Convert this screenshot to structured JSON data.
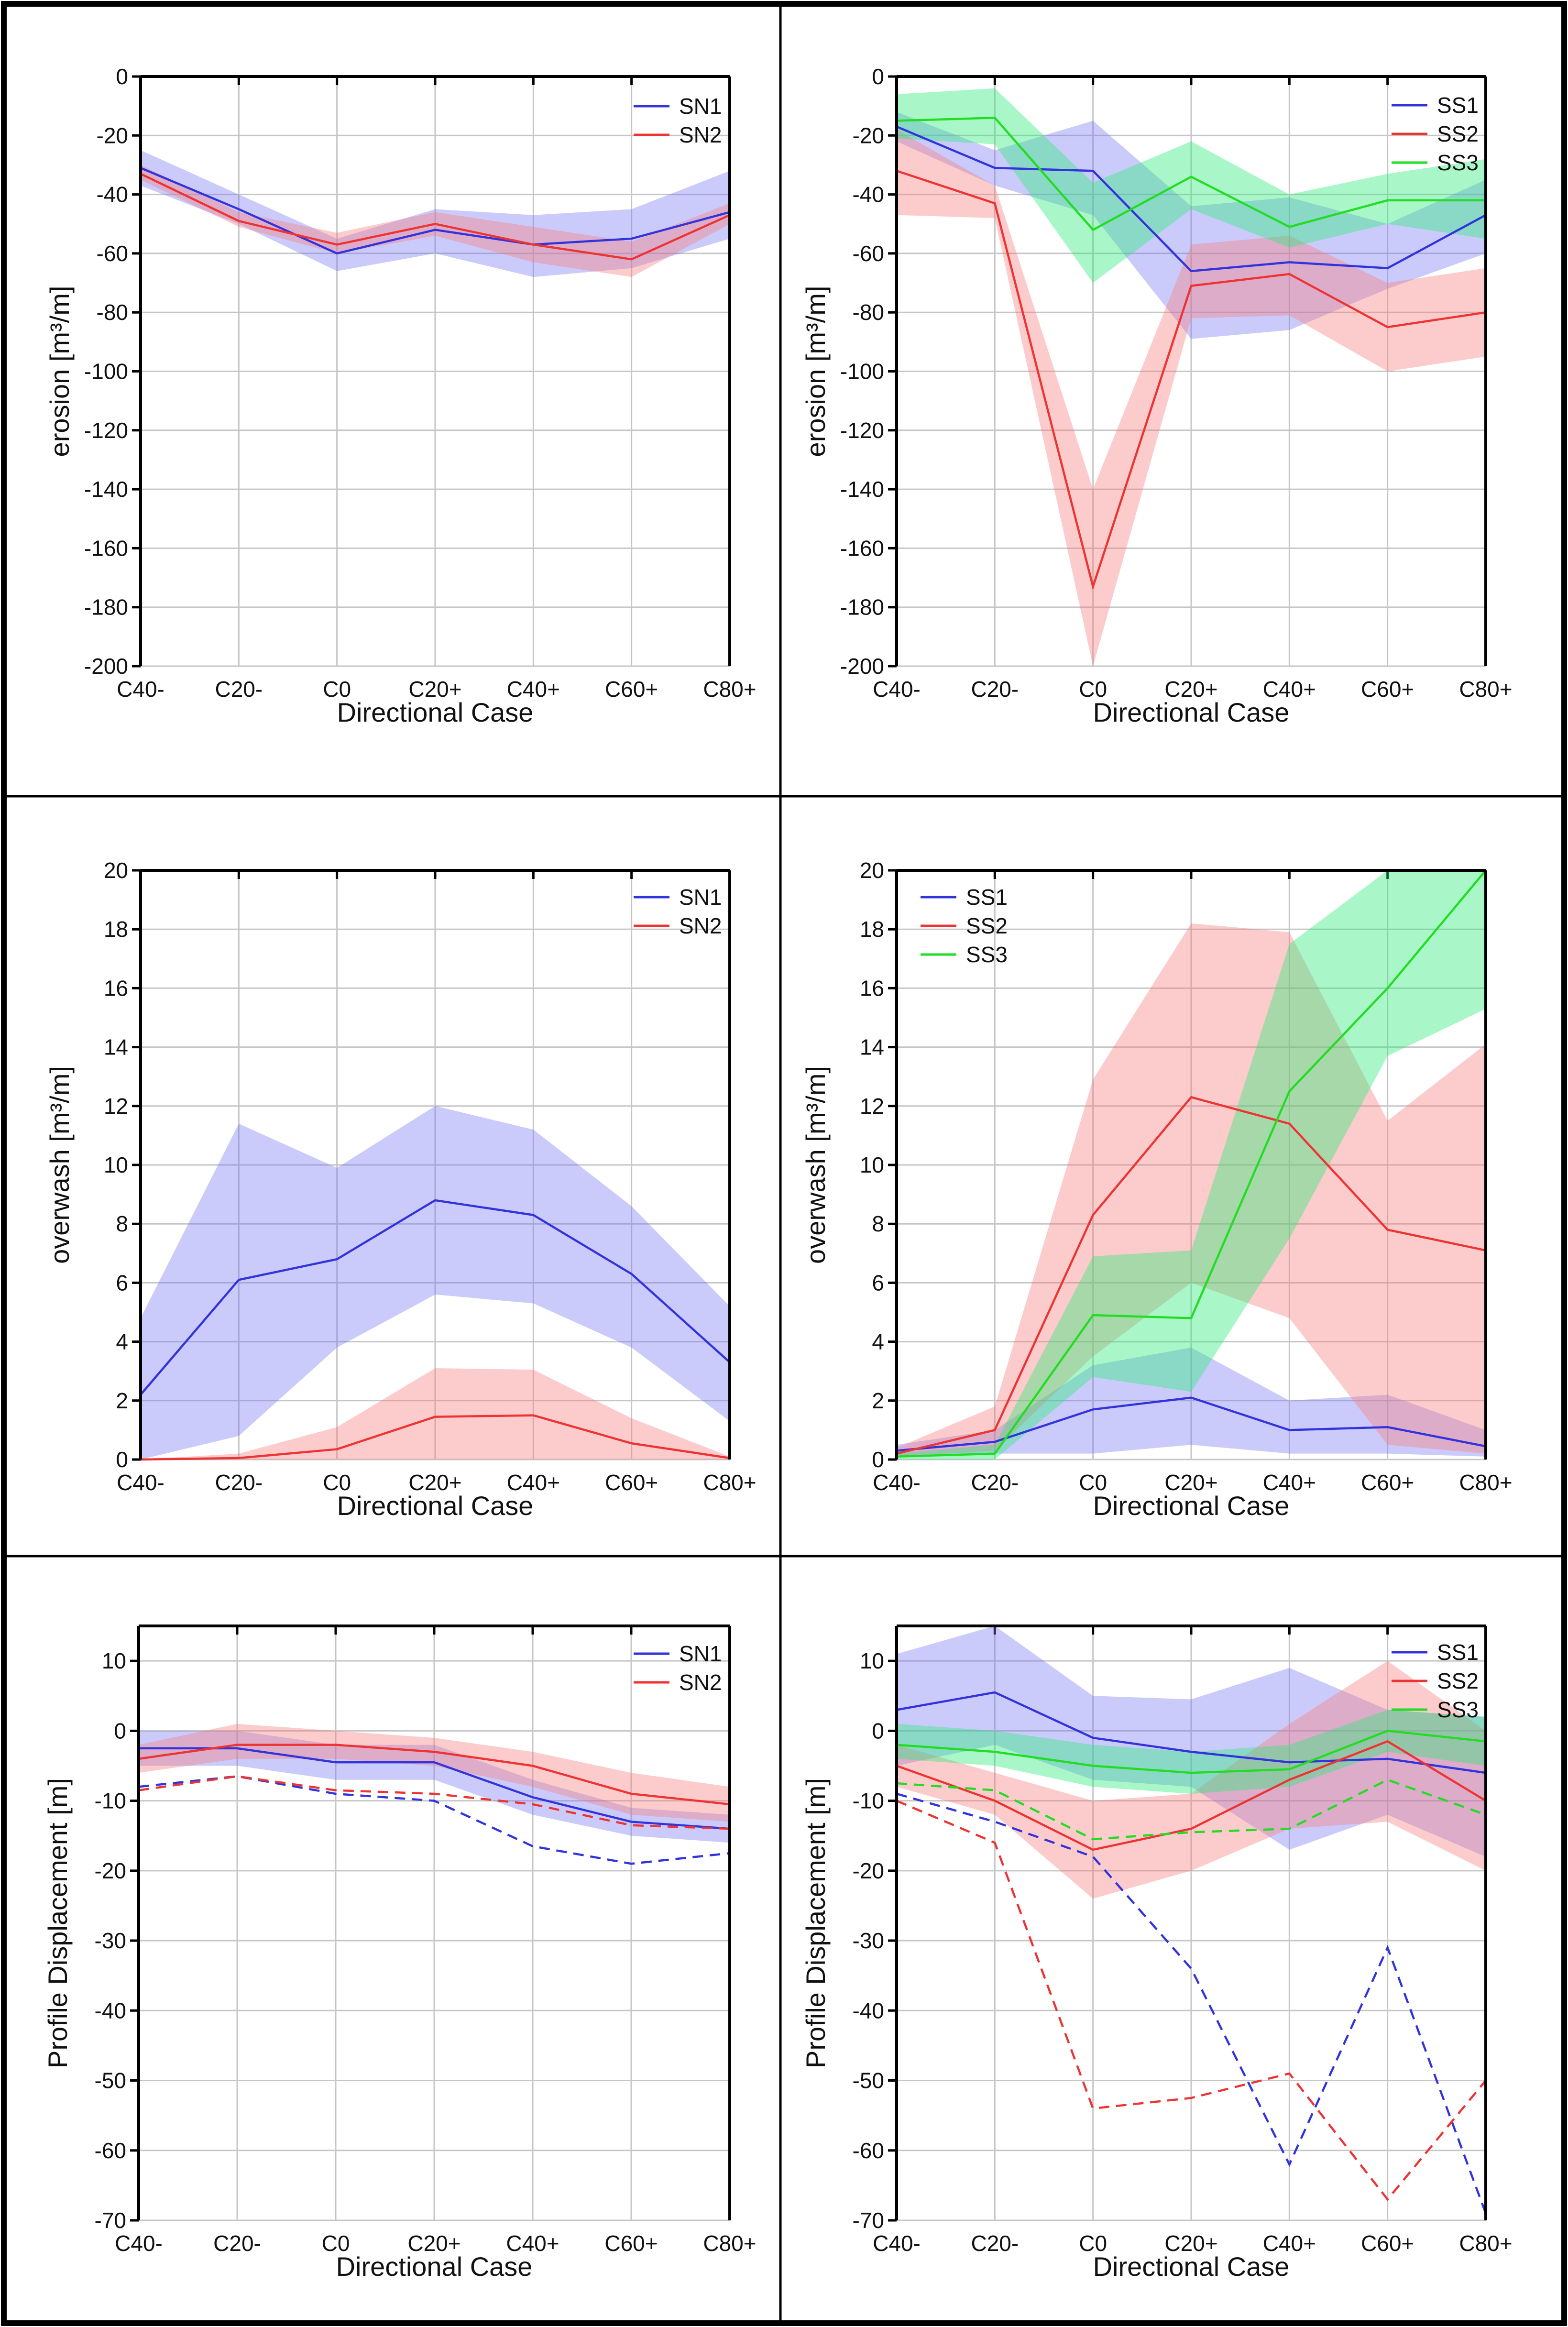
{
  "chart_data": [
    {
      "id": "p1",
      "type": "line",
      "categories": [
        "C40-",
        "C20-",
        "C0",
        "C20+",
        "C40+",
        "C60+",
        "C80+"
      ],
      "xlabel": "Directional Case",
      "ylabel": "erosion [m³/m]",
      "ylim": [
        -200,
        0
      ],
      "yticks": [
        0,
        -20,
        -40,
        -60,
        -80,
        -100,
        -120,
        -140,
        -160,
        -180,
        -200
      ],
      "legend": "top-right",
      "series": [
        {
          "name": "SN1",
          "color": "#3333dd",
          "values": [
            -31,
            -45,
            -60,
            -52,
            -57,
            -55,
            -46
          ],
          "band_low": [
            -37,
            -50,
            -66,
            -60,
            -68,
            -65,
            -55
          ],
          "band_high": [
            -25,
            -40,
            -55,
            -45,
            -47,
            -45,
            -32
          ]
        },
        {
          "name": "SN2",
          "color": "#ee3333",
          "values": [
            -33,
            -49,
            -57,
            -50,
            -57,
            -62,
            -47
          ],
          "band_low": [
            -35,
            -51,
            -60,
            -54,
            -63,
            -68,
            -50
          ],
          "band_high": [
            -30,
            -46,
            -53,
            -46,
            -51,
            -56,
            -43
          ]
        }
      ]
    },
    {
      "id": "p2",
      "type": "line",
      "categories": [
        "C40-",
        "C20-",
        "C0",
        "C20+",
        "C40+",
        "C60+",
        "C80+"
      ],
      "xlabel": "Directional Case",
      "ylabel": "erosion [m³/m]",
      "ylim": [
        -200,
        0
      ],
      "yticks": [
        0,
        -20,
        -40,
        -60,
        -80,
        -100,
        -120,
        -140,
        -160,
        -180,
        -200
      ],
      "legend": "top-right",
      "series": [
        {
          "name": "SS1",
          "color": "#3333dd",
          "values": [
            -17,
            -31,
            -32,
            -66,
            -63,
            -65,
            -47
          ],
          "band_low": [
            -22,
            -37,
            -47,
            -89,
            -86,
            -72,
            -60
          ],
          "band_high": [
            -12,
            -25,
            -15,
            -44,
            -41,
            -50,
            -35
          ]
        },
        {
          "name": "SS2",
          "color": "#ee3333",
          "values": [
            -32,
            -43,
            -173,
            -71,
            -67,
            -85,
            -80
          ],
          "band_low": [
            -47,
            -48,
            -200,
            -82,
            -81,
            -100,
            -95
          ],
          "band_high": [
            -18,
            -37,
            -140,
            -57,
            -54,
            -70,
            -65
          ]
        },
        {
          "name": "SS3",
          "color": "#22dd22",
          "values": [
            -15,
            -14,
            -52,
            -34,
            -51,
            -42,
            -42
          ],
          "band_low": [
            -21,
            -23,
            -70,
            -45,
            -58,
            -50,
            -55
          ],
          "band_high": [
            -6,
            -4,
            -36,
            -22,
            -40,
            -33,
            -28
          ]
        }
      ]
    },
    {
      "id": "p3",
      "type": "line",
      "categories": [
        "C40-",
        "C20-",
        "C0",
        "C20+",
        "C40+",
        "C60+",
        "C80+"
      ],
      "xlabel": "Directional Case",
      "ylabel": "overwash [m³/m]",
      "ylim": [
        0,
        20
      ],
      "yticks": [
        0,
        2,
        4,
        6,
        8,
        10,
        12,
        14,
        16,
        18,
        20
      ],
      "legend": "top-right",
      "series": [
        {
          "name": "SN1",
          "color": "#3333dd",
          "values": [
            2.2,
            6.1,
            6.8,
            8.8,
            8.3,
            6.3,
            3.3
          ],
          "band_low": [
            0,
            0.8,
            3.8,
            5.6,
            5.3,
            3.8,
            1.3
          ],
          "band_high": [
            4.8,
            11.4,
            9.9,
            12.0,
            11.2,
            8.6,
            5.2
          ]
        },
        {
          "name": "SN2",
          "color": "#ee3333",
          "values": [
            0,
            0.05,
            0.35,
            1.45,
            1.5,
            0.55,
            0.05
          ],
          "band_low": [
            0,
            0,
            0,
            0,
            0,
            0,
            0
          ],
          "band_high": [
            0,
            0.2,
            1.1,
            3.1,
            3.05,
            1.4,
            0.1
          ]
        }
      ]
    },
    {
      "id": "p4",
      "type": "line",
      "categories": [
        "C40-",
        "C20-",
        "C0",
        "C20+",
        "C40+",
        "C60+",
        "C80+"
      ],
      "xlabel": "Directional Case",
      "ylabel": "overwash [m³/m]",
      "ylim": [
        0,
        20
      ],
      "yticks": [
        0,
        2,
        4,
        6,
        8,
        10,
        12,
        14,
        16,
        18,
        20
      ],
      "legend": "top-left",
      "series": [
        {
          "name": "SS1",
          "color": "#3333dd",
          "values": [
            0.3,
            0.6,
            1.7,
            2.1,
            1.0,
            1.1,
            0.45
          ],
          "band_low": [
            0.1,
            0.2,
            0.2,
            0.5,
            0.2,
            0.2,
            0.1
          ],
          "band_high": [
            0.5,
            1.0,
            3.2,
            3.8,
            2.0,
            2.2,
            1.0
          ]
        },
        {
          "name": "SS2",
          "color": "#ee3333",
          "values": [
            0.2,
            1.0,
            8.3,
            12.3,
            11.4,
            7.8,
            7.1
          ],
          "band_low": [
            0.1,
            0.3,
            3.5,
            6.0,
            4.8,
            0.5,
            0.2
          ],
          "band_high": [
            0.4,
            1.8,
            12.9,
            18.2,
            17.9,
            11.5,
            14.1
          ]
        },
        {
          "name": "SS3",
          "color": "#22dd22",
          "values": [
            0.1,
            0.2,
            4.9,
            4.8,
            12.5,
            16.0,
            20.0
          ],
          "band_low": [
            0,
            0,
            2.8,
            2.3,
            7.5,
            13.7,
            15.3
          ],
          "band_high": [
            0.2,
            0.5,
            6.9,
            7.1,
            17.5,
            20.0,
            20.0
          ]
        }
      ]
    },
    {
      "id": "p5",
      "type": "line",
      "categories": [
        "C40-",
        "C20-",
        "C0",
        "C20+",
        "C40+",
        "C60+",
        "C80+"
      ],
      "xlabel": "Directional Case",
      "ylabel": "Profile Displacement [m]",
      "ylim": [
        -70,
        15
      ],
      "yticks": [
        10,
        0,
        -10,
        -20,
        -30,
        -40,
        -50,
        -60,
        -70
      ],
      "legend": "top-right",
      "series": [
        {
          "name": "SN1",
          "color": "#3333dd",
          "values": [
            -2.5,
            -2.5,
            -4.5,
            -4.5,
            -9.5,
            -13.0,
            -14.0
          ],
          "band_low": [
            -5.0,
            -5.0,
            -7.0,
            -7.0,
            -12.0,
            -15.0,
            -16.0
          ],
          "band_high": [
            0,
            0,
            -2.0,
            -2.0,
            -7.0,
            -11.0,
            -12.0
          ]
        },
        {
          "name": "SN2",
          "color": "#ee3333",
          "values": [
            -4.0,
            -2.0,
            -2.0,
            -3.0,
            -5.0,
            -9.0,
            -10.5
          ],
          "band_low": [
            -6.0,
            -4.0,
            -4.0,
            -5.0,
            -8.0,
            -12.0,
            -13.0
          ],
          "band_high": [
            -2.0,
            1.0,
            0,
            -1.0,
            -3.0,
            -6.0,
            -8.0
          ]
        },
        {
          "name": "SN1 (dashed)",
          "color": "#3333dd",
          "dashed": true,
          "values": [
            -8.0,
            -6.5,
            -9.0,
            -10.0,
            -16.5,
            -19.0,
            -17.5
          ]
        },
        {
          "name": "SN2 (dashed)",
          "color": "#ee3333",
          "dashed": true,
          "values": [
            -8.5,
            -6.5,
            -8.5,
            -9.0,
            -10.5,
            -13.5,
            -14.0
          ]
        }
      ]
    },
    {
      "id": "p6",
      "type": "line",
      "categories": [
        "C40-",
        "C20-",
        "C0",
        "C20+",
        "C40+",
        "C60+",
        "C80+"
      ],
      "xlabel": "Directional Case",
      "ylabel": "Profile Displacement [m]",
      "ylim": [
        -70,
        15
      ],
      "yticks": [
        10,
        0,
        -10,
        -20,
        -30,
        -40,
        -50,
        -60,
        -70
      ],
      "legend": "top-right",
      "series": [
        {
          "name": "SS1",
          "color": "#3333dd",
          "values": [
            3.0,
            5.5,
            -1.0,
            -3.0,
            -4.5,
            -4.0,
            -6.0
          ],
          "band_low": [
            -5,
            -2,
            -7,
            -8,
            -17,
            -12,
            -18
          ],
          "band_high": [
            11,
            15,
            5,
            4.5,
            9,
            3,
            2
          ]
        },
        {
          "name": "SS2",
          "color": "#ee3333",
          "values": [
            -5.0,
            -10.0,
            -17.0,
            -14.0,
            -7.0,
            -1.5,
            -10.0
          ],
          "band_low": [
            -8,
            -12,
            -24,
            -20,
            -14,
            -13,
            -20
          ],
          "band_high": [
            -2,
            -6,
            -10,
            -9,
            1,
            10,
            0
          ]
        },
        {
          "name": "SS3",
          "color": "#22dd22",
          "values": [
            -2.0,
            -3.0,
            -5.0,
            -6.0,
            -5.5,
            0,
            -1.5
          ],
          "band_low": [
            -4,
            -5,
            -8,
            -9,
            -8,
            -3,
            -5
          ],
          "band_high": [
            1,
            0,
            -2,
            -3,
            -2,
            3,
            2
          ]
        },
        {
          "name": "SS1 (dashed)",
          "color": "#3333dd",
          "dashed": true,
          "values": [
            -9.0,
            -13.0,
            -18.0,
            -34.0,
            -62.0,
            -31.0,
            -69.0
          ]
        },
        {
          "name": "SS2 (dashed)",
          "color": "#ee3333",
          "dashed": true,
          "values": [
            -10.0,
            -16.0,
            -54.0,
            -52.5,
            -49.0,
            -67.0,
            -50.0
          ]
        },
        {
          "name": "SS3 (dashed)",
          "color": "#22dd22",
          "dashed": true,
          "values": [
            -7.5,
            -8.5,
            -15.5,
            -14.5,
            -14.0,
            -7.0,
            -12.0
          ]
        }
      ]
    }
  ]
}
